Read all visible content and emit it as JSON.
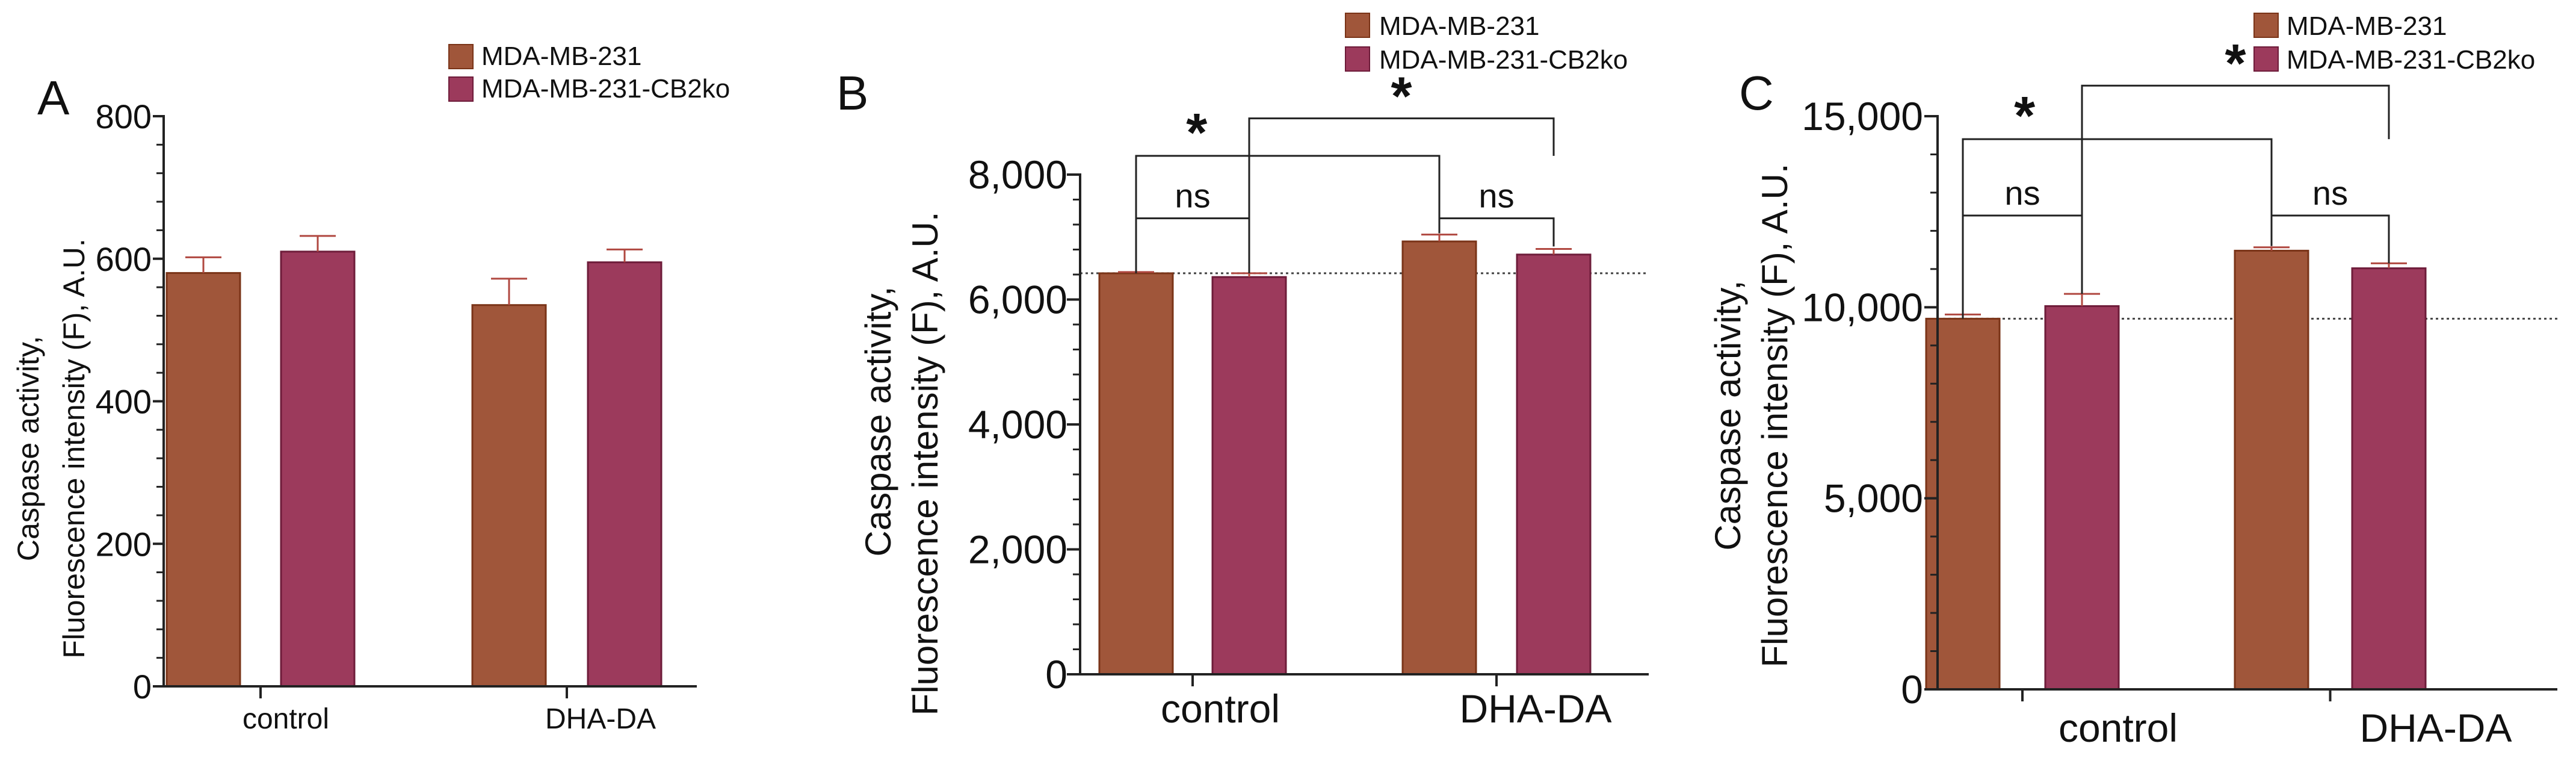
{
  "colors": {
    "series1": "#a0563a",
    "series1_stroke": "#7a3418",
    "series2": "#9c3a5c",
    "series2_stroke": "#6e1c3a",
    "legend1_text": "#8a3a1c",
    "legend2_text": "#6a1838",
    "axis": "#222222",
    "error": "#b04840"
  },
  "chart_data": [
    {
      "panel": "A",
      "type": "bar",
      "ylabel": [
        "Caspase activity,",
        "Fluorescence intensity (F), A.U."
      ],
      "categories": [
        "control",
        "DHA-DA"
      ],
      "ylim": [
        0,
        800
      ],
      "yticks": [
        0,
        200,
        400,
        600,
        800
      ],
      "yticks_labels": [
        "0",
        "200",
        "400",
        "600",
        "800"
      ],
      "series": [
        {
          "name": "MDA-MB-231",
          "values": [
            580,
            535
          ],
          "errors": [
            22,
            37
          ]
        },
        {
          "name": "MDA-MB-231-CB2ko",
          "values": [
            610,
            595
          ],
          "errors": [
            22,
            18
          ]
        }
      ],
      "legend": [
        "MDA-MB-231",
        "MDA-MB-231-CB2ko"
      ],
      "brackets": []
    },
    {
      "panel": "B",
      "type": "bar",
      "ylabel": [
        "Caspase activity,",
        "Fluorescence intensity (F), A.U."
      ],
      "categories": [
        "control",
        "DHA-DA"
      ],
      "ylim": [
        0,
        8000
      ],
      "yticks": [
        0,
        2000,
        4000,
        6000,
        8000
      ],
      "yticks_labels": [
        "0",
        "2,000",
        "4,000",
        "6,000",
        "8,000"
      ],
      "reference_line": 6420,
      "series": [
        {
          "name": "MDA-MB-231",
          "values": [
            6420,
            6930
          ],
          "errors": [
            20,
            110
          ]
        },
        {
          "name": "MDA-MB-231-CB2ko",
          "values": [
            6360,
            6720
          ],
          "errors": [
            60,
            90
          ]
        }
      ],
      "legend": [
        "MDA-MB-231",
        "MDA-MB-231-CB2ko"
      ],
      "brackets": [
        {
          "label": "ns",
          "from_group": 0,
          "from_series": 0,
          "to_group": 0,
          "to_series": 1,
          "y": 7300,
          "left_drop": 6420,
          "right_drop": 6420
        },
        {
          "label": "ns",
          "from_group": 1,
          "from_series": 0,
          "to_group": 1,
          "to_series": 1,
          "y": 7300,
          "left_drop": 7060,
          "right_drop": 6850
        },
        {
          "label": "*",
          "from_group": 0,
          "from_series": 0,
          "to_group": 1,
          "to_series": 0,
          "y": 8300,
          "left_drop": 7300,
          "right_drop": 7300
        },
        {
          "label": "*",
          "from_group": 0,
          "from_series": 1,
          "to_group": 1,
          "to_series": 1,
          "y": 8900,
          "left_drop": 7300,
          "right_drop": 8300
        }
      ]
    },
    {
      "panel": "C",
      "type": "bar",
      "ylabel": [
        "Caspase activity,",
        "Fluorescence intensity (F), A.U."
      ],
      "categories": [
        "control",
        "DHA-DA"
      ],
      "ylim": [
        0,
        15000
      ],
      "yticks": [
        0,
        5000,
        10000,
        15000
      ],
      "yticks_labels": [
        "0",
        "5,000",
        "10,000",
        "15,000"
      ],
      "reference_line": 9700,
      "series": [
        {
          "name": "MDA-MB-231",
          "values": [
            9700,
            11480
          ],
          "errors": [
            110,
            90
          ]
        },
        {
          "name": "MDA-MB-231-CB2ko",
          "values": [
            10030,
            11020
          ],
          "errors": [
            320,
            130
          ]
        }
      ],
      "legend": [
        "MDA-MB-231",
        "MDA-MB-231-CB2ko"
      ],
      "brackets": [
        {
          "label": "ns",
          "from_group": 0,
          "from_series": 0,
          "to_group": 0,
          "to_series": 1,
          "y": 12400,
          "left_drop": 9700,
          "right_drop": 10350
        },
        {
          "label": "ns",
          "from_group": 1,
          "from_series": 0,
          "to_group": 1,
          "to_series": 1,
          "y": 12400,
          "left_drop": 11600,
          "right_drop": 11150
        },
        {
          "label": "*",
          "from_group": 0,
          "from_series": 0,
          "to_group": 1,
          "to_series": 0,
          "y": 14400,
          "left_drop": 12400,
          "right_drop": 12400
        },
        {
          "label": "*",
          "from_group": 0,
          "from_series": 1,
          "to_group": 1,
          "to_series": 1,
          "y": 15800,
          "left_drop": 12400,
          "right_drop": 14400
        }
      ]
    }
  ]
}
